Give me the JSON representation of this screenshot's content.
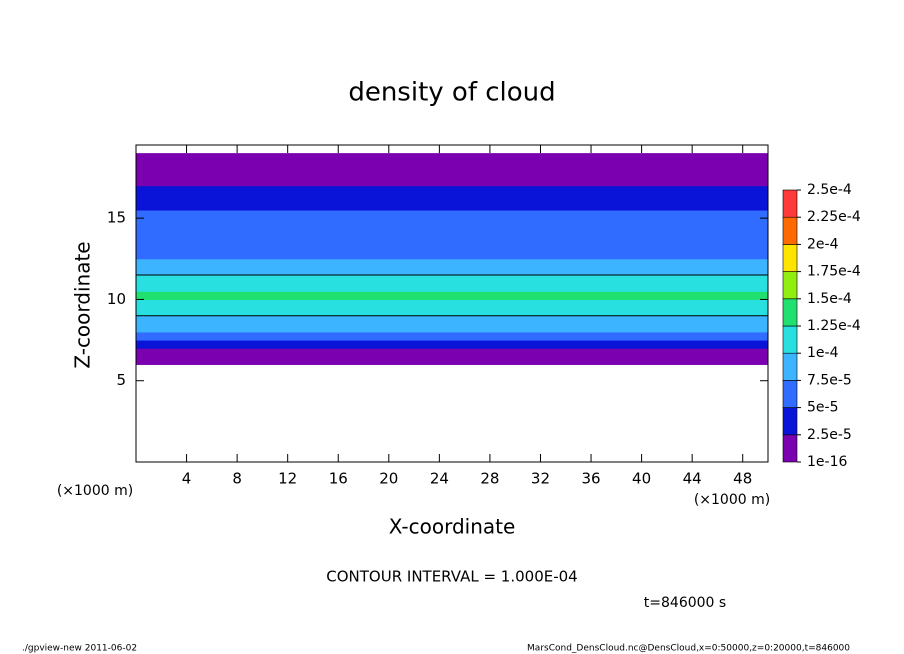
{
  "chart_data": {
    "type": "contourf",
    "title": "density of cloud",
    "xlabel": "X-coordinate",
    "ylabel": "Z-coordinate",
    "x_unit_left": "(×1000 m)",
    "x_unit_right": "(×1000 m)",
    "contour_note": "CONTOUR INTERVAL = 1.000E-04",
    "time_note": "t=846000 s",
    "footer_left": "./gpview-new  2011-06-02",
    "footer_right": "MarsCond_DensCloud.nc@DensCloud,x=0:50000,z=0:20000,t=846000",
    "xlim": [
      0,
      50
    ],
    "xticks": [
      4,
      8,
      12,
      16,
      20,
      24,
      28,
      32,
      36,
      40,
      44,
      48
    ],
    "ylim": [
      0,
      19.5
    ],
    "yticks": [
      5,
      10,
      15
    ],
    "z_edges": [
      6,
      6.5,
      7,
      7.5,
      8,
      8.5,
      9,
      9.5,
      10,
      10.5,
      11,
      11.5,
      12,
      12.5,
      13,
      13.5,
      14,
      14.5,
      15,
      15.5,
      16,
      16.5,
      17,
      17.5,
      18,
      18.5,
      19
    ],
    "values": [
      1e-05,
      2e-05,
      3e-05,
      6e-05,
      8e-05,
      9e-05,
      0.000105,
      0.00012,
      0.00013,
      0.00012,
      0.000105,
      9e-05,
      8e-05,
      7e-05,
      6.5e-05,
      6e-05,
      6e-05,
      5.5e-05,
      5.5e-05,
      4.5e-05,
      4e-05,
      3e-05,
      2e-05,
      1.5e-05,
      1e-05,
      1e-05
    ],
    "contour_levels": [
      0.0001
    ],
    "colorbar_ticks": [
      {
        "value": 1e-16,
        "label": "1e-16"
      },
      {
        "value": 2.5e-05,
        "label": "2.5e-5"
      },
      {
        "value": 5e-05,
        "label": "5e-5"
      },
      {
        "value": 7.5e-05,
        "label": "7.5e-5"
      },
      {
        "value": 0.0001,
        "label": "1e-4"
      },
      {
        "value": 0.000125,
        "label": "1.25e-4"
      },
      {
        "value": 0.00015,
        "label": "1.5e-4"
      },
      {
        "value": 0.000175,
        "label": "1.75e-4"
      },
      {
        "value": 0.0002,
        "label": "2e-4"
      },
      {
        "value": 0.000225,
        "label": "2.25e-4"
      },
      {
        "value": 0.00025,
        "label": "2.5e-4"
      }
    ],
    "colors": [
      "#7a00b0",
      "#0a14d8",
      "#2f6cff",
      "#3cb4ff",
      "#28e0e0",
      "#20e070",
      "#90ee10",
      "#ffe400",
      "#ff6a00",
      "#ff3a3a"
    ]
  }
}
